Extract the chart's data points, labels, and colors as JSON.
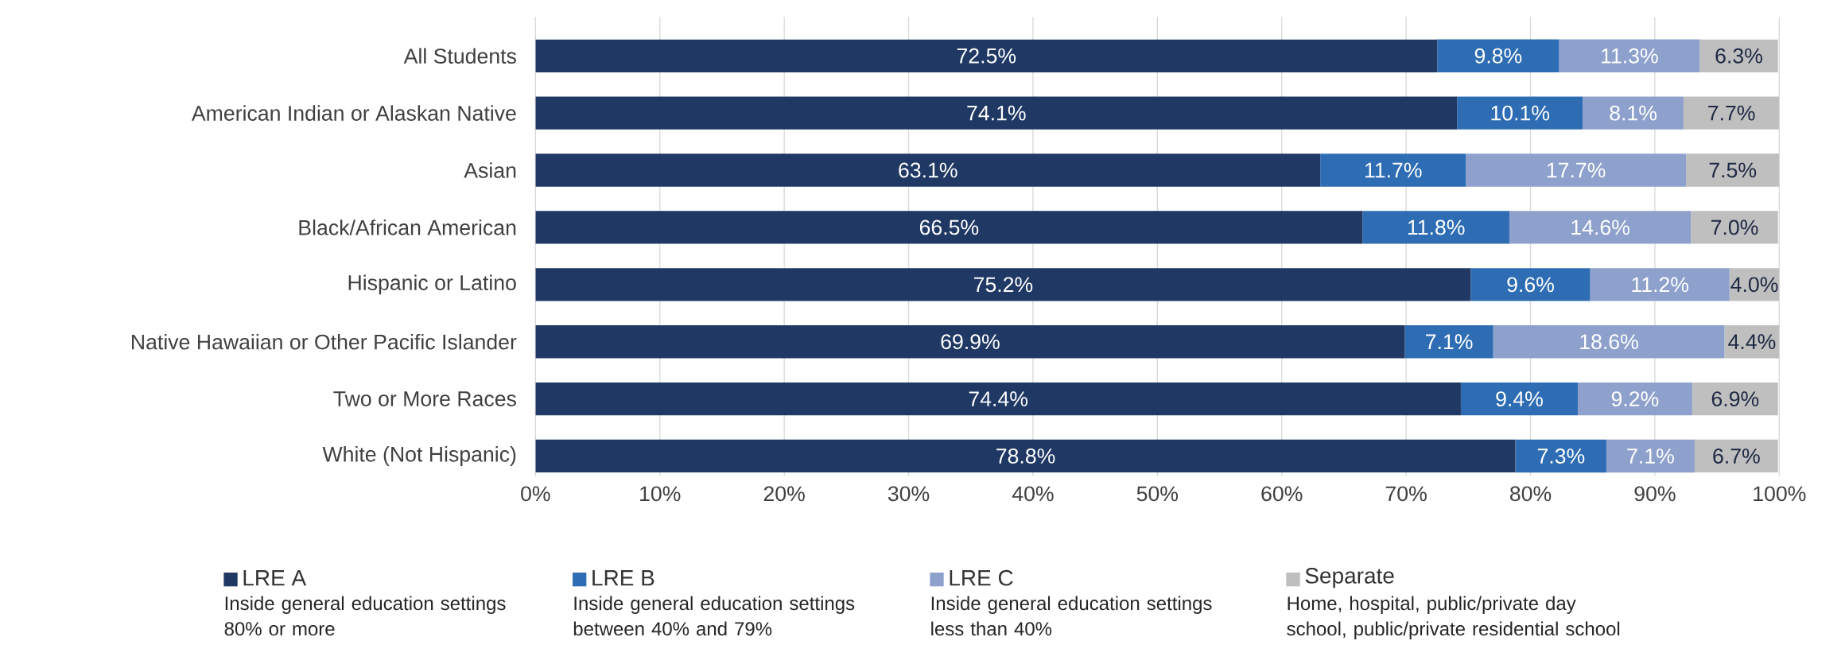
{
  "chart_data": {
    "type": "bar",
    "orientation": "horizontal",
    "stacked": true,
    "categories": [
      "All Students",
      "American Indian or Alaskan Native",
      "Asian",
      "Black/African American",
      "Hispanic or Latino",
      "Native Hawaiian or Other Pacific Islander",
      "Two or More Races",
      "White (Not Hispanic)"
    ],
    "series": [
      {
        "name": "LRE A",
        "color": "#1f3864",
        "values": [
          72.5,
          74.1,
          63.1,
          66.5,
          75.2,
          69.9,
          74.4,
          78.8
        ],
        "value_labels": [
          "72.5%",
          "74.1%",
          "63.1%",
          "66.5%",
          "75.2%",
          "69.9%",
          "74.4%",
          "78.8%"
        ]
      },
      {
        "name": "LRE B",
        "color": "#2e6db4",
        "values": [
          9.8,
          10.1,
          11.7,
          11.8,
          9.6,
          7.1,
          9.4,
          7.3
        ],
        "value_labels": [
          "9.8%",
          "10.1%",
          "11.7%",
          "11.8%",
          "9.6%",
          "7.1%",
          "9.4%",
          "7.3%"
        ]
      },
      {
        "name": "LRE C",
        "color": "#8ea1cc",
        "values": [
          11.3,
          8.1,
          17.7,
          14.6,
          11.2,
          18.6,
          9.2,
          7.1
        ],
        "value_labels": [
          "11.3%",
          "8.1%",
          "17.7%",
          "14.6%",
          "11.2%",
          "18.6%",
          "9.2%",
          "7.1%"
        ]
      },
      {
        "name": "Separate",
        "color": "#bfbfbf",
        "values": [
          6.3,
          7.7,
          7.5,
          7.0,
          4.0,
          4.4,
          6.9,
          6.7
        ],
        "value_labels": [
          "6.3%",
          "7.7%",
          "7.5%",
          "7.0%",
          "4.0%",
          "4.4%",
          "6.9%",
          "6.7%"
        ]
      }
    ],
    "xlim": [
      0,
      100
    ],
    "xticks": [
      {
        "value": 0,
        "label": "0%"
      },
      {
        "value": 10,
        "label": "10%"
      },
      {
        "value": 20,
        "label": "20%"
      },
      {
        "value": 30,
        "label": "30%"
      },
      {
        "value": 40,
        "label": "40%"
      },
      {
        "value": 50,
        "label": "50%"
      },
      {
        "value": 60,
        "label": "60%"
      },
      {
        "value": 70,
        "label": "70%"
      },
      {
        "value": 80,
        "label": "80%"
      },
      {
        "value": 90,
        "label": "90%"
      },
      {
        "value": 100,
        "label": "100%"
      }
    ],
    "grid": "x",
    "legend": "bottom",
    "annotations": [
      "Inside general education settings 80% or more",
      "Inside general education settings between 40% and 79%",
      "Inside general education settings less than 40%",
      "Home, hospital, public/private day school, public/private residential school"
    ]
  }
}
